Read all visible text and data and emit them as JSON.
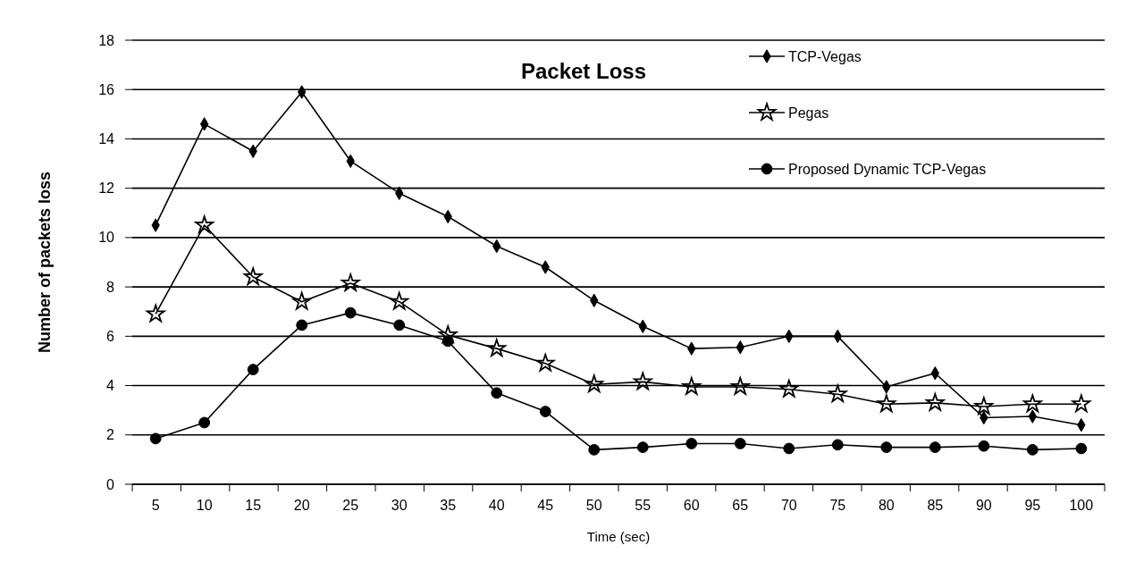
{
  "chart_data": {
    "type": "line",
    "title": "Packet Loss",
    "xlabel": "Time (sec)",
    "ylabel": "Number of packets loss",
    "categories": [
      "5",
      "10",
      "15",
      "20",
      "25",
      "30",
      "35",
      "40",
      "45",
      "50",
      "55",
      "60",
      "65",
      "70",
      "75",
      "80",
      "85",
      "90",
      "95",
      "100"
    ],
    "ylim": [
      0,
      18
    ],
    "yticks": [
      0,
      2,
      4,
      6,
      8,
      10,
      12,
      14,
      16,
      18
    ],
    "grid": "y",
    "legend": "top right",
    "line_style": "solid",
    "series": [
      {
        "name": "TCP-Vegas",
        "color": "#000000",
        "marker": "diamond",
        "values": [
          10.5,
          14.6,
          13.5,
          15.9,
          13.1,
          11.8,
          10.85,
          9.65,
          8.8,
          7.45,
          6.4,
          5.5,
          5.55,
          6.0,
          6.0,
          3.95,
          4.5,
          2.7,
          2.75,
          2.4
        ]
      },
      {
        "name": "Pegas",
        "color": "#000000",
        "marker": "star",
        "values": [
          6.9,
          10.5,
          8.4,
          7.4,
          8.15,
          7.4,
          6.05,
          5.5,
          4.9,
          4.05,
          4.15,
          3.95,
          3.95,
          3.85,
          3.65,
          3.25,
          3.3,
          3.15,
          3.25,
          3.25
        ]
      },
      {
        "name": "Proposed Dynamic TCP-Vegas",
        "color": "#000000",
        "marker": "circle",
        "values": [
          1.85,
          2.5,
          4.65,
          6.45,
          6.95,
          6.45,
          5.8,
          3.7,
          2.95,
          1.4,
          1.5,
          1.65,
          1.65,
          1.45,
          1.6,
          1.5,
          1.5,
          1.55,
          1.4,
          1.45
        ]
      }
    ]
  }
}
